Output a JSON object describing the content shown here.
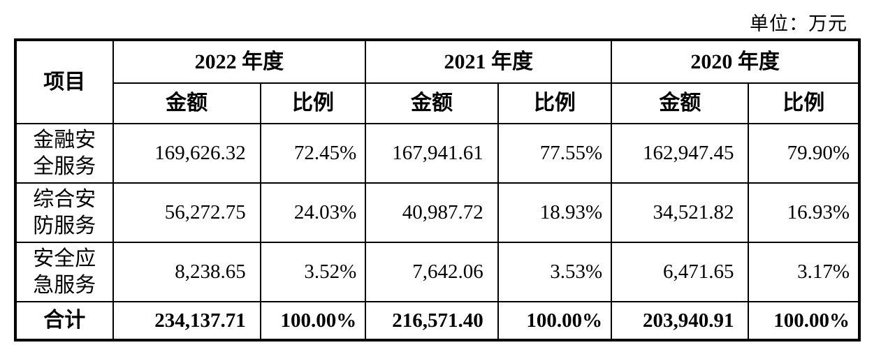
{
  "unit_label": "单位：万元",
  "table": {
    "header": {
      "item_col": "项目",
      "year_groups": [
        {
          "year": "2022 年度",
          "amount": "金额",
          "ratio": "比例"
        },
        {
          "year": "2021 年度",
          "amount": "金额",
          "ratio": "比例"
        },
        {
          "year": "2020 年度",
          "amount": "金额",
          "ratio": "比例"
        }
      ]
    },
    "rows": [
      {
        "label": "金融安全服务",
        "cells": [
          "169,626.32",
          "72.45%",
          "167,941.61",
          "77.55%",
          "162,947.45",
          "79.90%"
        ]
      },
      {
        "label": "综合安防服务",
        "cells": [
          "56,272.75",
          "24.03%",
          "40,987.72",
          "18.93%",
          "34,521.82",
          "16.93%"
        ]
      },
      {
        "label": "安全应急服务",
        "cells": [
          "8,238.65",
          "3.52%",
          "7,642.06",
          "3.53%",
          "6,471.65",
          "3.17%"
        ]
      }
    ],
    "total_row": {
      "label": "合计",
      "cells": [
        "234,137.71",
        "100.00%",
        "216,571.40",
        "100.00%",
        "203,940.91",
        "100.00%"
      ]
    }
  },
  "colors": {
    "text": "#000000",
    "border": "#000000",
    "background": "#ffffff"
  }
}
